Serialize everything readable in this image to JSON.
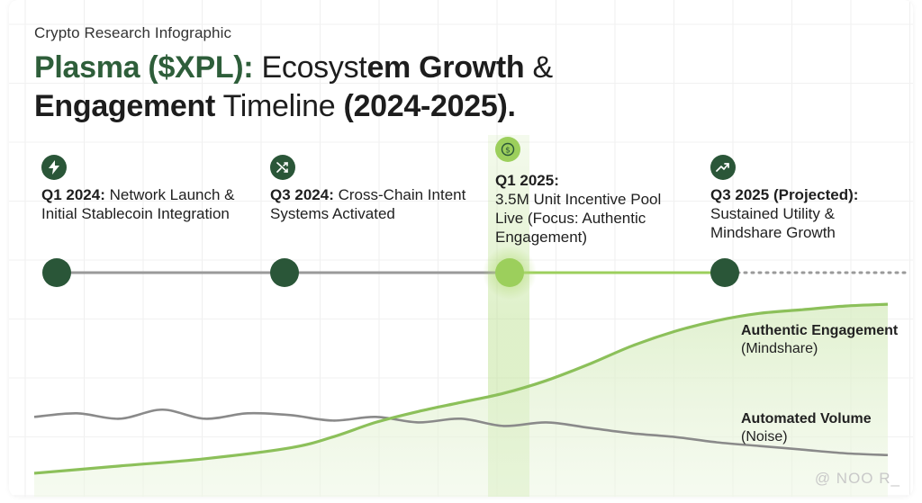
{
  "header": {
    "subtitle": "Crypto Research Infographic",
    "title_part1": "Plasma ($XPL):",
    "title_part2": " Ecosyst",
    "title_part3": "em Growth",
    "title_part4": " &",
    "title_part5": "Engagement",
    "title_part6": " Timeline ",
    "title_part7": "(2024-2025)."
  },
  "milestones": [
    {
      "icon": "lightning-icon",
      "period": "Q1 2024:",
      "text": " Network Launch & Initial Stablecoin Integration"
    },
    {
      "icon": "shuffle-icon",
      "period": "Q3 2024:",
      "text": " Cross-Chain Intent Systems Activated"
    },
    {
      "icon": "dollar-coin-icon",
      "period": "Q1 2025:",
      "text": "3.5M Unit Incentive Pool Live (Focus: Authentic Engagement)"
    },
    {
      "icon": "trending-up-icon",
      "period": "Q3 2025 (Projected):",
      "text": " Sustained Utility & Mindshare Growth"
    }
  ],
  "legend": {
    "authentic_title": "Authentic Engagement",
    "authentic_sub": "(Mindshare)",
    "automated_title": "Automated Volume",
    "automated_sub": "(Noise)"
  },
  "watermark": "@ NOO R_",
  "colors": {
    "dark_green": "#2a5638",
    "light_green": "#9ccf5c",
    "curve_green": "#8cc05a",
    "noise_gray": "#8a8a8a",
    "timeline_gray": "#9a9a9a"
  },
  "chart_data": {
    "type": "area",
    "title": "Plasma ($XPL): Ecosystem Growth & Engagement Timeline (2024-2025).",
    "x_milestones": [
      "Q1 2024",
      "Q3 2024",
      "Q1 2025",
      "Q3 2025"
    ],
    "xlim": [
      0,
      1
    ],
    "ylim": [
      0,
      1
    ],
    "series": [
      {
        "name": "Authentic Engagement (Mindshare)",
        "x": [
          0.0,
          0.1,
          0.2,
          0.3,
          0.35,
          0.4,
          0.45,
          0.5,
          0.55,
          0.6,
          0.65,
          0.7,
          0.75,
          0.8,
          0.85,
          0.9,
          0.95,
          1.0
        ],
        "y": [
          0.02,
          0.06,
          0.1,
          0.16,
          0.22,
          0.3,
          0.36,
          0.41,
          0.46,
          0.53,
          0.62,
          0.72,
          0.8,
          0.86,
          0.9,
          0.92,
          0.94,
          0.95
        ]
      },
      {
        "name": "Automated Volume (Noise)",
        "x": [
          0.0,
          0.05,
          0.1,
          0.15,
          0.2,
          0.25,
          0.3,
          0.35,
          0.4,
          0.45,
          0.5,
          0.55,
          0.6,
          0.65,
          0.7,
          0.75,
          0.8,
          0.85,
          0.9,
          0.95,
          1.0
        ],
        "y": [
          0.33,
          0.35,
          0.32,
          0.37,
          0.32,
          0.35,
          0.34,
          0.31,
          0.33,
          0.3,
          0.32,
          0.28,
          0.3,
          0.27,
          0.24,
          0.22,
          0.19,
          0.17,
          0.15,
          0.13,
          0.12
        ]
      }
    ]
  }
}
